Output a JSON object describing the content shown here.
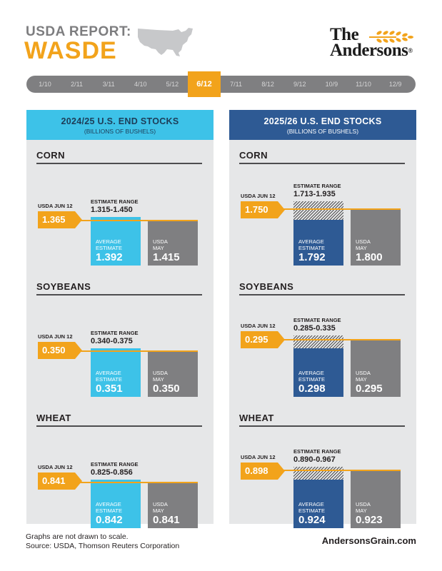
{
  "header": {
    "small_title": "USDA REPORT:",
    "big_title": "WASDE",
    "logo_line1": "The",
    "logo_line2": "Andersons",
    "logo_reg": "®"
  },
  "colors": {
    "orange": "#f2a31b",
    "cyan": "#3dc2e8",
    "navy": "#2e5a94",
    "gray": "#7f7f81"
  },
  "timeline": {
    "items": [
      "1/10",
      "2/11",
      "3/11",
      "4/10",
      "5/12",
      "6/12",
      "7/11",
      "8/12",
      "9/12",
      "10/9",
      "11/10",
      "12/9"
    ],
    "active_index": 5
  },
  "chart_data": [
    {
      "type": "bar",
      "title": "2024/25 U.S. END STOCKS",
      "subtitle": "(BILLIONS OF BUSHELS)",
      "crops": [
        {
          "name": "CORN",
          "usda_label": "USDA JUN 12",
          "usda": "1.365",
          "range_label": "ESTIMATE RANGE",
          "range": "1.315-1.450",
          "avg_label": [
            "AVERAGE",
            "ESTIMATE"
          ],
          "avg": "1.392",
          "may_label": [
            "USDA",
            "MAY"
          ],
          "may": "1.415"
        },
        {
          "name": "SOYBEANS",
          "usda_label": "USDA JUN 12",
          "usda": "0.350",
          "range_label": "ESTIMATE RANGE",
          "range": "0.340-0.375",
          "avg_label": [
            "AVERAGE",
            "ESTIMATE"
          ],
          "avg": "0.351",
          "may_label": [
            "USDA",
            "MAY"
          ],
          "may": "0.350"
        },
        {
          "name": "WHEAT",
          "usda_label": "USDA JUN 12",
          "usda": "0.841",
          "range_label": "ESTIMATE RANGE",
          "range": "0.825-0.856",
          "avg_label": [
            "AVERAGE",
            "ESTIMATE"
          ],
          "avg": "0.842",
          "may_label": [
            "USDA",
            "MAY"
          ],
          "may": "0.841"
        }
      ]
    },
    {
      "type": "bar",
      "title": "2025/26 U.S. END STOCKS",
      "subtitle": "(BILLIONS OF BUSHELS)",
      "crops": [
        {
          "name": "CORN",
          "usda_label": "USDA JUN 12",
          "usda": "1.750",
          "range_label": "ESTIMATE RANGE",
          "range": "1.713-1.935",
          "avg_label": [
            "AVERAGE",
            "ESTIMATE"
          ],
          "avg": "1.792",
          "may_label": [
            "USDA",
            "MAY"
          ],
          "may": "1.800"
        },
        {
          "name": "SOYBEANS",
          "usda_label": "USDA JUN 12",
          "usda": "0.295",
          "range_label": "ESTIMATE RANGE",
          "range": "0.285-0.335",
          "avg_label": [
            "AVERAGE",
            "ESTIMATE"
          ],
          "avg": "0.298",
          "may_label": [
            "USDA",
            "MAY"
          ],
          "may": "0.295"
        },
        {
          "name": "WHEAT",
          "usda_label": "USDA JUN 12",
          "usda": "0.898",
          "range_label": "ESTIMATE RANGE",
          "range": "0.890-0.967",
          "avg_label": [
            "AVERAGE",
            "ESTIMATE"
          ],
          "avg": "0.924",
          "may_label": [
            "USDA",
            "MAY"
          ],
          "may": "0.923"
        }
      ]
    }
  ],
  "footer": {
    "note_line1": "Graphs are not drawn to scale.",
    "note_line2": "Source: USDA, Thomson Reuters Corporation",
    "site": "AndersonsGrain.com"
  }
}
